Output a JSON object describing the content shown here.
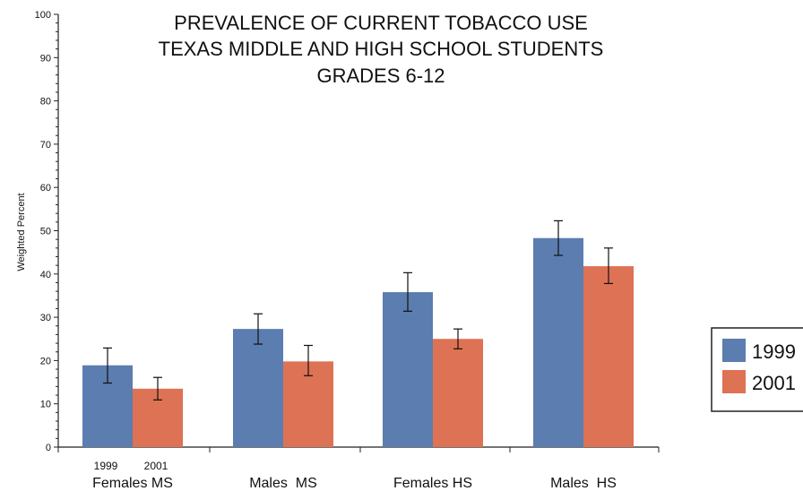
{
  "chart_data": {
    "type": "bar",
    "title_lines": [
      "PREVALENCE OF CURRENT TOBACCO USE",
      "TEXAS MIDDLE AND HIGH SCHOOL STUDENTS",
      "GRADES 6-12"
    ],
    "xlabel": "",
    "ylabel": "Weighted Percent",
    "ylim": [
      0,
      100
    ],
    "yticks": [
      0,
      10,
      20,
      30,
      40,
      50,
      60,
      70,
      80,
      90,
      100
    ],
    "categories": [
      "Females MS",
      "Males  MS",
      "Females HS",
      "Males  HS"
    ],
    "series_year_labels": [
      "1999",
      "2001"
    ],
    "series": [
      {
        "name": "1999",
        "color": "#5b7db0",
        "values": [
          18.9,
          27.3,
          35.8,
          48.3
        ],
        "error_low": [
          14.8,
          23.8,
          31.4,
          44.3
        ],
        "error_high": [
          22.9,
          30.8,
          40.3,
          52.3
        ]
      },
      {
        "name": "2001",
        "color": "#de7254",
        "values": [
          13.5,
          19.8,
          25.0,
          41.8
        ],
        "error_low": [
          10.9,
          16.5,
          22.7,
          37.8
        ],
        "error_high": [
          16.1,
          23.5,
          27.3,
          46.0
        ]
      }
    ],
    "legend_position": "right",
    "grid": false
  }
}
